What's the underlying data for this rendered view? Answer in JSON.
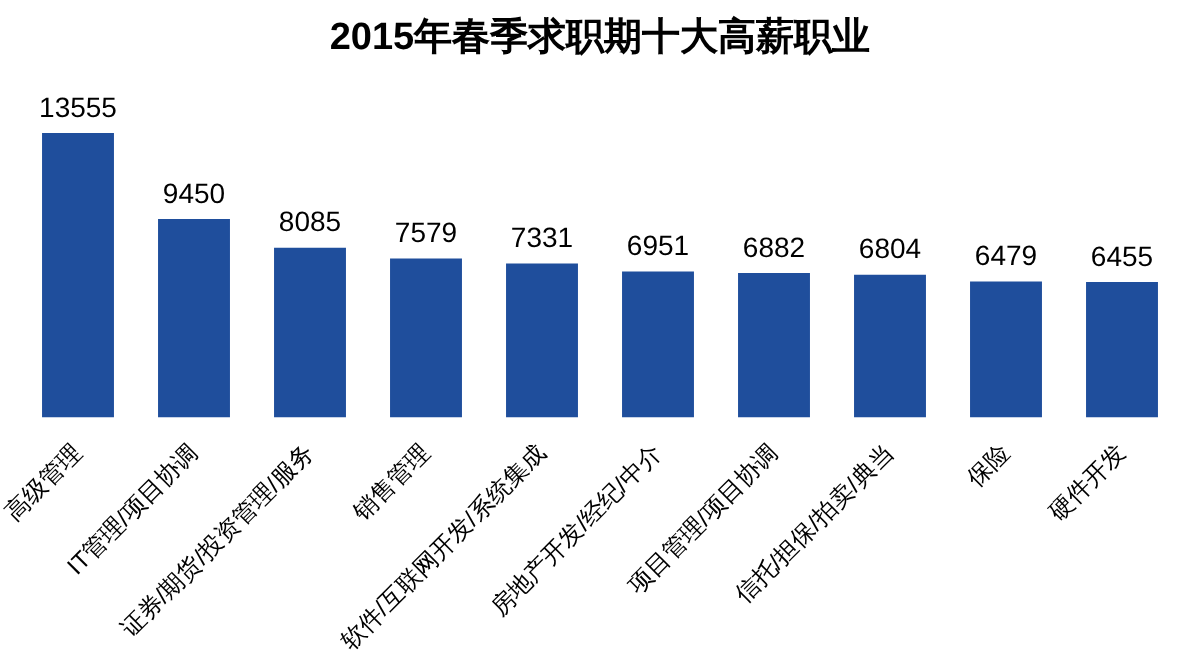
{
  "chart_data": {
    "type": "bar",
    "title": "2015年春季求职期十大高薪职业",
    "categories": [
      "高级管理",
      "IT管理/项目协调",
      "证券/期货/投资管理/服务",
      "销售管理",
      "软件/互联网开发/系统集成",
      "房地产开发/经纪/中介",
      "项目管理/项目协调",
      "信托/担保/拍卖/典当",
      "保险",
      "硬件开发"
    ],
    "values": [
      13555,
      9450,
      8085,
      7579,
      7331,
      6951,
      6882,
      6804,
      6479,
      6455
    ],
    "color": "#1f4e9c",
    "data_labels": true,
    "grid": false,
    "legend": false
  }
}
